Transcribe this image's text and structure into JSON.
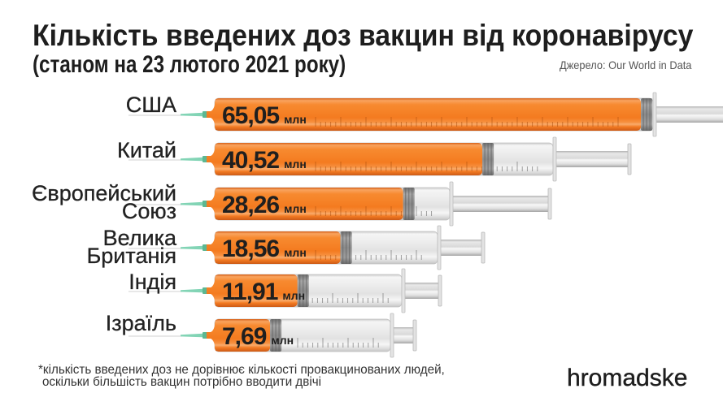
{
  "chart_data": {
    "type": "bar",
    "orientation": "horizontal",
    "title": "Кількість введених доз вакцин від коронавірусу",
    "subtitle": "(станом на 23 лютого 2021 року)",
    "categories": [
      [
        "США"
      ],
      [
        "Китай"
      ],
      [
        "Європейський",
        "Союз"
      ],
      [
        "Велика",
        "Британія"
      ],
      [
        "Індія"
      ],
      [
        "Ізраїль"
      ]
    ],
    "values": [
      65.05,
      40.52,
      28.26,
      18.56,
      11.91,
      7.69
    ],
    "value_labels": [
      "65,05",
      "40,52",
      "28,26",
      "18,56",
      "11,91",
      "7,69"
    ],
    "unit": "млн",
    "xlabel": "",
    "ylabel": "",
    "grid": false,
    "legend": "none"
  },
  "source": "Джерело: Our World in Data",
  "footnote": {
    "line1": "*кількість введених доз не дорівнює кількості провакцинованих людей,",
    "line2": "оскільки більшість вакцин потрібно вводити двічі"
  },
  "brand": {
    "logo_text": "hromadske"
  },
  "colors": {
    "fill": "#f47b20",
    "needle": "#82d4b5",
    "text": "#1f1f1f"
  }
}
